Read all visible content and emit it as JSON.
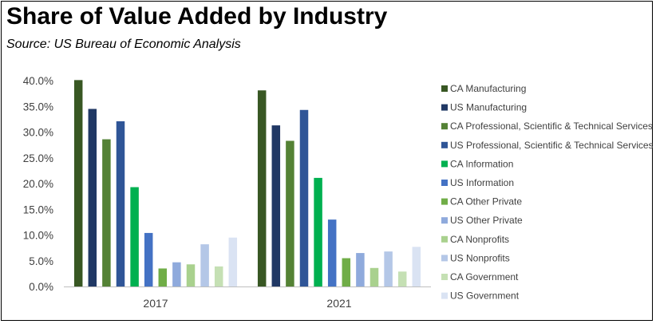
{
  "header": {
    "title": "Share of Value Added by Industry",
    "source": "Source:  US Bureau of Economic Analysis"
  },
  "chart_data": {
    "type": "bar",
    "title": "Share of Value Added by Industry",
    "subtitle": "Source:  US Bureau of Economic Analysis",
    "xlabel": "",
    "ylabel": "",
    "categories": [
      "2017",
      "2021"
    ],
    "ylim": [
      0,
      40
    ],
    "yticks": [
      "0.0%",
      "5.0%",
      "10.0%",
      "15.0%",
      "20.0%",
      "25.0%",
      "30.0%",
      "35.0%",
      "40.0%"
    ],
    "grid": false,
    "legend": "right",
    "series": [
      {
        "name": "CA Manufacturing",
        "color": "#385723",
        "values": [
          40.1,
          38.1
        ]
      },
      {
        "name": "US Manufacturing",
        "color": "#203864",
        "values": [
          34.5,
          31.3
        ]
      },
      {
        "name": "CA Professional, Scientific & Technical Services",
        "color": "#548235",
        "values": [
          28.6,
          28.3
        ]
      },
      {
        "name": "US Professional, Scientific & Technical Services",
        "color": "#2F5597",
        "values": [
          32.1,
          34.3
        ]
      },
      {
        "name": "CA Information",
        "color": "#00B050",
        "values": [
          19.3,
          21.1
        ]
      },
      {
        "name": "US Information",
        "color": "#4472C4",
        "values": [
          10.4,
          13.0
        ]
      },
      {
        "name": "CA Other Private",
        "color": "#70AD47",
        "values": [
          3.5,
          5.5
        ]
      },
      {
        "name": "US Other Private",
        "color": "#8FAADC",
        "values": [
          4.7,
          6.5
        ]
      },
      {
        "name": "CA Nonprofits",
        "color": "#A9D18E",
        "values": [
          4.3,
          3.6
        ]
      },
      {
        "name": "US Nonprofits",
        "color": "#B4C7E7",
        "values": [
          8.2,
          6.8
        ]
      },
      {
        "name": "CA Government",
        "color": "#C5E0B4",
        "values": [
          3.9,
          2.9
        ]
      },
      {
        "name": "US Government",
        "color": "#DAE3F3",
        "values": [
          9.5,
          7.7
        ]
      }
    ]
  }
}
